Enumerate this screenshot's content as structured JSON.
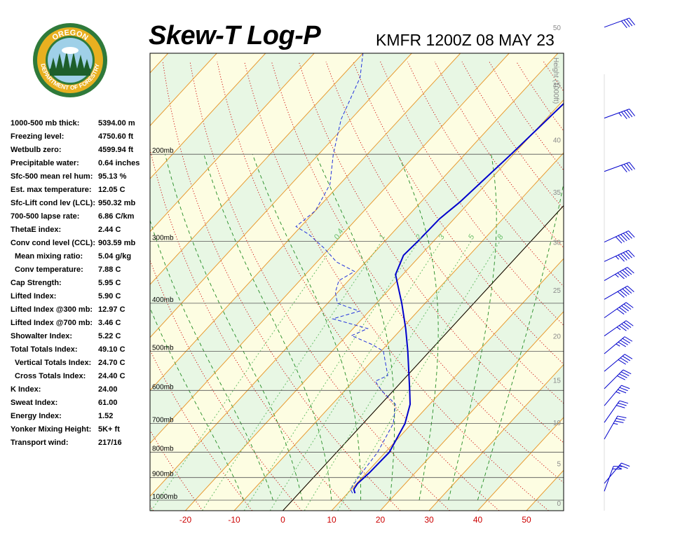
{
  "header": {
    "title": "Skew-T Log-P",
    "station_time": "KMFR 1200Z 08 MAY 23"
  },
  "logo": {
    "text_top": "OREGON",
    "text_bottom": "DEPARTMENT OF FORESTRY",
    "colors": {
      "ring": "#2f7a3a",
      "gold": "#e8b020",
      "tree": "#1d5e2a",
      "sky": "#9fd0e8"
    }
  },
  "stats": [
    {
      "label": "1000-500 mb thick:",
      "value": "5394.00 m"
    },
    {
      "label": "Freezing level:",
      "value": "4750.60 ft"
    },
    {
      "label": "Wetbulb zero:",
      "value": "4599.94 ft"
    },
    {
      "label": "Precipitable water:",
      "value": "0.64 inches"
    },
    {
      "label": "Sfc-500 mean rel hum:",
      "value": "95.13 %"
    },
    {
      "label": "Est. max temperature:",
      "value": "12.05 C"
    },
    {
      "label": "Sfc-Lift cond lev (LCL):",
      "value": "950.32 mb"
    },
    {
      "label": "700-500 lapse rate:",
      "value": "6.86 C/km"
    },
    {
      "label": "ThetaE index:",
      "value": "2.44 C"
    },
    {
      "label": "Conv cond level (CCL):",
      "value": "903.59 mb"
    },
    {
      "label": "Mean mixing ratio:",
      "value": "5.04 g/kg",
      "indent": true
    },
    {
      "label": "Conv temperature:",
      "value": "7.88 C",
      "indent": true
    },
    {
      "label": "Cap Strength:",
      "value": "5.95 C"
    },
    {
      "label": "Lifted Index:",
      "value": "5.90 C"
    },
    {
      "label": "Lifted Index @300 mb:",
      "value": "12.97 C"
    },
    {
      "label": "Lifted Index @700 mb:",
      "value": "3.46 C"
    },
    {
      "label": "Showalter Index:",
      "value": "5.22 C"
    },
    {
      "label": "Total Totals Index:",
      "value": "49.10 C"
    },
    {
      "label": "Vertical Totals Index:",
      "value": "24.70 C",
      "indent": true
    },
    {
      "label": "Cross Totals Index:",
      "value": "24.40 C",
      "indent": true
    },
    {
      "label": "K Index:",
      "value": "24.00"
    },
    {
      "label": "Sweat Index:",
      "value": "61.00"
    },
    {
      "label": "Energy Index:",
      "value": "1.52"
    },
    {
      "label": "Yonker Mixing Height:",
      "value": "5K+ ft"
    },
    {
      "label": "Transport wind:",
      "value": "217/16"
    }
  ],
  "chart_data": {
    "type": "line",
    "pressure_labels": [
      "200mb",
      "300mb",
      "400mb",
      "500mb",
      "600mb",
      "700mb",
      "800mb",
      "900mb",
      "1000mb"
    ],
    "pressure_levels": [
      200,
      300,
      400,
      500,
      600,
      700,
      800,
      900,
      1000
    ],
    "temperature_ticks": [
      "-20",
      "-10",
      "0",
      "10",
      "20",
      "30",
      "40",
      "50"
    ],
    "temperature_tick_values": [
      -20,
      -10,
      0,
      10,
      20,
      30,
      40,
      50
    ],
    "height_axis_label": "Height (1000ft)",
    "height_ticks": [
      "0",
      "5",
      "10",
      "15",
      "20",
      "25",
      "30",
      "35",
      "40",
      "45",
      "50"
    ],
    "mixing_ratio_labels": [
      "0.4",
      "1",
      "2",
      "3",
      "5",
      "8"
    ],
    "mixing_ratio_values": [
      0.4,
      1,
      2,
      3,
      5,
      8
    ],
    "colors": {
      "temperature": "#0000cc",
      "dewpoint": "#2233dd",
      "isotherm": "#e89b32",
      "dry_adiabat": "#cc0000",
      "moist_adiabat": "#228b22",
      "mixing_ratio": "#6cbf6c",
      "isobar": "#555555",
      "band_light": "#fdfde2",
      "band_alt": "#e8f7e4",
      "wind": "#0000cc"
    },
    "temperature_profile": [
      {
        "p": 968,
        "t": 11.5
      },
      {
        "p": 950,
        "t": 10.5
      },
      {
        "p": 925,
        "t": 10.2
      },
      {
        "p": 880,
        "t": 10.6
      },
      {
        "p": 800,
        "t": 10.8
      },
      {
        "p": 700,
        "t": 8.6
      },
      {
        "p": 640,
        "t": 6.0
      },
      {
        "p": 600,
        "t": 3.3
      },
      {
        "p": 500,
        "t": -4.5
      },
      {
        "p": 450,
        "t": -9.2
      },
      {
        "p": 400,
        "t": -14.8
      },
      {
        "p": 350,
        "t": -21.5
      },
      {
        "p": 320,
        "t": -23.5
      },
      {
        "p": 300,
        "t": -23.2
      },
      {
        "p": 270,
        "t": -23.0
      },
      {
        "p": 250,
        "t": -22.0
      },
      {
        "p": 200,
        "t": -20.5
      },
      {
        "p": 150,
        "t": -19.0
      },
      {
        "p": 125,
        "t": -18.5
      }
    ],
    "dewpoint_profile": [
      {
        "p": 968,
        "t": 11.0
      },
      {
        "p": 950,
        "t": 9.8
      },
      {
        "p": 930,
        "t": 9.6
      },
      {
        "p": 900,
        "t": 9.2
      },
      {
        "p": 800,
        "t": 8.4
      },
      {
        "p": 700,
        "t": 6.2
      },
      {
        "p": 640,
        "t": 3.0
      },
      {
        "p": 600,
        "t": -2.5
      },
      {
        "p": 575,
        "t": -5.5
      },
      {
        "p": 560,
        "t": -4.0
      },
      {
        "p": 500,
        "t": -9.5
      },
      {
        "p": 485,
        "t": -13.0
      },
      {
        "p": 465,
        "t": -19.0
      },
      {
        "p": 450,
        "t": -17.0
      },
      {
        "p": 430,
        "t": -26.0
      },
      {
        "p": 415,
        "t": -22.0
      },
      {
        "p": 400,
        "t": -28.0
      },
      {
        "p": 380,
        "t": -30.5
      },
      {
        "p": 360,
        "t": -32.0
      },
      {
        "p": 345,
        "t": -30.5
      },
      {
        "p": 330,
        "t": -36.0
      },
      {
        "p": 310,
        "t": -41.0
      },
      {
        "p": 290,
        "t": -47.0
      },
      {
        "p": 280,
        "t": -51.0
      },
      {
        "p": 260,
        "t": -50.0
      },
      {
        "p": 230,
        "t": -52.0
      },
      {
        "p": 200,
        "t": -57.0
      },
      {
        "p": 170,
        "t": -62.0
      },
      {
        "p": 140,
        "t": -66.0
      },
      {
        "p": 125,
        "t": -70.0
      }
    ],
    "wind_barbs": [
      {
        "height_kft": 1.5,
        "dir": 200,
        "speed_kt": 20
      },
      {
        "height_kft": 2.5,
        "dir": 220,
        "speed_kt": 25
      },
      {
        "height_kft": 8.0,
        "dir": 210,
        "speed_kt": 35
      },
      {
        "height_kft": 10.0,
        "dir": 215,
        "speed_kt": 30
      },
      {
        "height_kft": 12.0,
        "dir": 220,
        "speed_kt": 35
      },
      {
        "height_kft": 14.0,
        "dir": 225,
        "speed_kt": 40
      },
      {
        "height_kft": 16.0,
        "dir": 230,
        "speed_kt": 40
      },
      {
        "height_kft": 18.0,
        "dir": 230,
        "speed_kt": 45
      },
      {
        "height_kft": 20.0,
        "dir": 235,
        "speed_kt": 45
      },
      {
        "height_kft": 22.0,
        "dir": 235,
        "speed_kt": 50
      },
      {
        "height_kft": 24.0,
        "dir": 240,
        "speed_kt": 50
      },
      {
        "height_kft": 26.0,
        "dir": 240,
        "speed_kt": 55
      },
      {
        "height_kft": 28.0,
        "dir": 245,
        "speed_kt": 55
      },
      {
        "height_kft": 30.0,
        "dir": 245,
        "speed_kt": 60
      },
      {
        "height_kft": 37.0,
        "dir": 250,
        "speed_kt": 40
      },
      {
        "height_kft": 42.0,
        "dir": 250,
        "speed_kt": 45
      },
      {
        "height_kft": 50.0,
        "dir": 250,
        "speed_kt": 40
      }
    ]
  }
}
